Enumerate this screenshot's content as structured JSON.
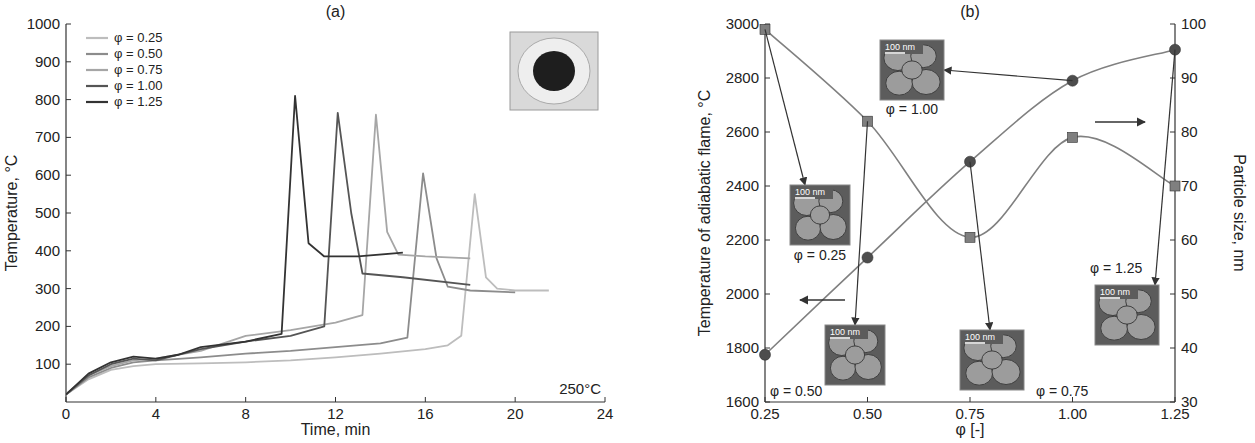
{
  "chart_data": [
    {
      "type": "line",
      "title": "(a)",
      "x_label": "Time, min",
      "y_label": "Temperature, °C",
      "xlim": [
        0,
        24
      ],
      "xticks": [
        0,
        4,
        8,
        12,
        16,
        20,
        24
      ],
      "ylim": [
        0,
        1000
      ],
      "yticks": [
        100,
        200,
        300,
        400,
        500,
        600,
        700,
        800,
        900,
        1000
      ],
      "legend": "upper left",
      "annotations": [
        "250°C"
      ],
      "series": [
        {
          "name": "φ = 0.25",
          "color": "#bdbdbd",
          "x": [
            0,
            1,
            2,
            3,
            4,
            6,
            8,
            10,
            12,
            14,
            16,
            17,
            17.6,
            18.2,
            18.7,
            19.2,
            20,
            21.5
          ],
          "values": [
            20,
            60,
            85,
            95,
            100,
            102,
            105,
            110,
            118,
            128,
            140,
            150,
            175,
            550,
            330,
            300,
            295,
            295
          ]
        },
        {
          "name": "φ = 0.50",
          "color": "#8c8c8c",
          "x": [
            0,
            1,
            2,
            3,
            4,
            6,
            8,
            10,
            12,
            14,
            15.2,
            15.9,
            16.5,
            17,
            18,
            20
          ],
          "values": [
            20,
            65,
            90,
            105,
            110,
            118,
            128,
            135,
            145,
            155,
            170,
            605,
            380,
            305,
            295,
            290
          ]
        },
        {
          "name": "φ = 0.75",
          "color": "#a6a6a6",
          "x": [
            0,
            1,
            2,
            3,
            4,
            6,
            8,
            10,
            12,
            13.2,
            13.8,
            14.3,
            14.8,
            16,
            18
          ],
          "values": [
            20,
            70,
            95,
            110,
            115,
            135,
            175,
            190,
            210,
            230,
            760,
            450,
            390,
            385,
            380
          ]
        },
        {
          "name": "φ = 1.00",
          "color": "#555555",
          "x": [
            0,
            1,
            2,
            3,
            4,
            6,
            8,
            10,
            11.5,
            12.1,
            12.7,
            13.2,
            15,
            18
          ],
          "values": [
            20,
            70,
            100,
            115,
            110,
            140,
            160,
            175,
            200,
            765,
            500,
            340,
            330,
            310
          ]
        },
        {
          "name": "φ = 1.25",
          "color": "#333333",
          "x": [
            0,
            1,
            2,
            3,
            4,
            5,
            6,
            8,
            9.6,
            10.2,
            10.8,
            11.5,
            13,
            15
          ],
          "values": [
            20,
            75,
            105,
            120,
            115,
            125,
            145,
            160,
            180,
            810,
            420,
            385,
            385,
            395
          ]
        }
      ]
    },
    {
      "type": "line",
      "title": "(b)",
      "x_label": "φ [-]",
      "y_label": "Temperature of adiabatic flame, °C",
      "y2_label": "Particle size, nm",
      "x": [
        0.25,
        0.5,
        0.75,
        1.0,
        1.25
      ],
      "xlim": [
        0.25,
        1.25
      ],
      "xticks": [
        0.25,
        {
          "value": 0.5,
          "label": "0.50"
        },
        0.75,
        {
          "value": 1.0,
          "label": "1.00"
        },
        1.25
      ],
      "ylim": [
        1600,
        3000
      ],
      "yticks": [
        1600,
        1800,
        2000,
        2200,
        2400,
        2600,
        2800,
        3000
      ],
      "y2lim": [
        30,
        100
      ],
      "y2ticks": [
        30,
        40,
        50,
        60,
        70,
        80,
        90,
        100
      ],
      "series": [
        {
          "color": "#4d4d4d",
          "marker": "circle",
          "line_style": "smooth",
          "values": [
            1775,
            2135,
            2490,
            2790,
            2905
          ]
        },
        {
          "color": "#7f7f7f",
          "marker": "square",
          "line_style": "smooth",
          "axis": "y2",
          "values": [
            99,
            82,
            60.5,
            79,
            70
          ]
        }
      ],
      "insets": [
        {
          "label": "φ = 0.25",
          "scale_bar": "100 nm"
        },
        {
          "label": "φ = 0.50",
          "scale_bar": "100 nm"
        },
        {
          "label": "φ = 0.75",
          "scale_bar": "100 nm"
        },
        {
          "label": "φ = 1.00",
          "scale_bar": "100 nm"
        },
        {
          "label": "φ = 1.25",
          "scale_bar": "100 nm"
        }
      ]
    }
  ]
}
